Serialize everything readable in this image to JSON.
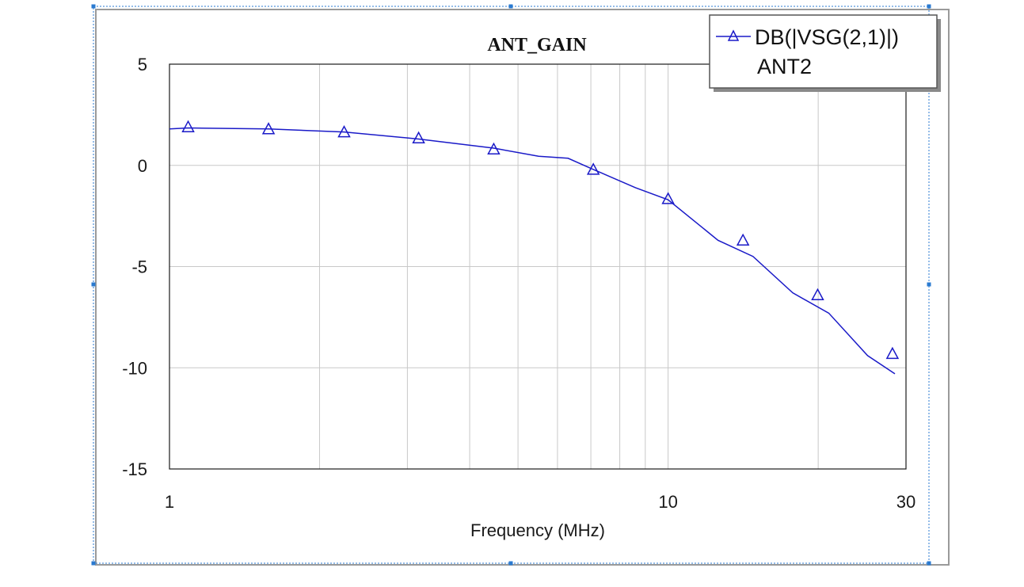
{
  "chart_data": {
    "type": "line",
    "title": "ANT_GAIN",
    "xlabel": "Frequency (MHz)",
    "ylabel": "",
    "x_scale": "log",
    "xlim": [
      1,
      30
    ],
    "ylim": [
      -15,
      5
    ],
    "x_ticks": [
      {
        "value": 1,
        "label": "1"
      },
      {
        "value": 10,
        "label": "10"
      },
      {
        "value": 30,
        "label": "30"
      }
    ],
    "y_ticks": [
      {
        "value": 5,
        "label": "5"
      },
      {
        "value": 0,
        "label": "0"
      },
      {
        "value": -5,
        "label": "-5"
      },
      {
        "value": -10,
        "label": "-10"
      },
      {
        "value": -15,
        "label": "-15"
      }
    ],
    "grid": true,
    "legend_position": "top-right",
    "series": [
      {
        "name": "DB(|VSG(2,1)|)",
        "sub_label": "ANT2",
        "color": "#1a1ac8",
        "marker": "triangle-open",
        "x": [
          1.0,
          1.09,
          1.58,
          2.24,
          3.16,
          4.47,
          5.5,
          6.3,
          7.08,
          8.6,
          10.0,
          12.59,
          14.8,
          17.78,
          21.0,
          25.12,
          28.5
        ],
        "y": [
          1.8,
          1.85,
          1.8,
          1.65,
          1.3,
          0.85,
          0.45,
          0.35,
          -0.2,
          -1.1,
          -1.7,
          -3.7,
          -4.5,
          -6.3,
          -7.3,
          -9.4,
          -10.3
        ],
        "marker_x": [
          1.09,
          1.58,
          2.24,
          3.16,
          4.47,
          7.08,
          10.0,
          14.13,
          19.95,
          28.18
        ],
        "marker_y": [
          1.9,
          1.8,
          1.65,
          1.35,
          0.8,
          -0.2,
          -1.65,
          -3.7,
          -6.4,
          -9.3
        ]
      }
    ]
  }
}
